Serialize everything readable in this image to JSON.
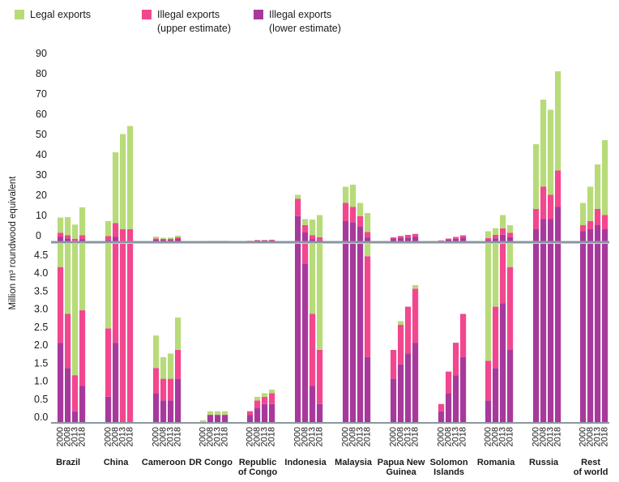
{
  "legend": [
    {
      "label_lines": [
        "Legal exports"
      ],
      "color": "#b8db7a"
    },
    {
      "label_lines": [
        "Illegal exports",
        "(upper estimate)"
      ],
      "color": "#f2478f"
    },
    {
      "label_lines": [
        "Illegal exports",
        "(lower estimate)"
      ],
      "color": "#a8399c"
    }
  ],
  "chart_data": [
    {
      "type": "bar",
      "stacked": true,
      "panel": "upper",
      "ylabel": "Million m³ roundwood equivalent",
      "ylim": [
        0,
        90
      ],
      "yticks": [
        "0",
        "10",
        "20",
        "30",
        "40",
        "50",
        "60",
        "70",
        "80",
        "90"
      ],
      "years": [
        "2000",
        "2008",
        "2013",
        "2018"
      ],
      "groups": [
        {
          "name": "Brazil",
          "values": [
            [
              2.2,
              4.3,
              11.8
            ],
            [
              1.5,
              3.0,
              12.0
            ],
            [
              0.3,
              1.3,
              8.3
            ],
            [
              1.0,
              3.1,
              16.8
            ]
          ]
        },
        {
          "name": "China",
          "values": [
            [
              0.7,
              2.6,
              10.0
            ],
            [
              2.2,
              9.0,
              44.0
            ],
            [
              0,
              6.0,
              53.0
            ],
            [
              0,
              6.0,
              57.0
            ]
          ]
        },
        {
          "name": "Cameroon",
          "values": [
            [
              0.8,
              1.5,
              2.4
            ],
            [
              0.6,
              1.2,
              1.8
            ],
            [
              0.6,
              1.2,
              1.9
            ],
            [
              1.2,
              2.0,
              2.9
            ]
          ]
        },
        {
          "name": "DR Congo",
          "values": [
            [
              0,
              0,
              0.05
            ],
            [
              0.2,
              0.2,
              0.3
            ],
            [
              0.2,
              0.2,
              0.3
            ],
            [
              0.2,
              0.2,
              0.3
            ]
          ]
        },
        {
          "name": "Republic of Congo",
          "values": [
            [
              0.2,
              0.3,
              0.3
            ],
            [
              0.4,
              0.6,
              0.7
            ],
            [
              0.5,
              0.7,
              0.8
            ],
            [
              0.5,
              0.8,
              0.9
            ]
          ]
        },
        {
          "name": "Indonesia",
          "values": [
            [
              12.5,
              21.0,
              23.0
            ],
            [
              4.4,
              8.0,
              11.0
            ],
            [
              1.0,
              3.0,
              10.8
            ],
            [
              0.5,
              2.0,
              13.0
            ]
          ]
        },
        {
          "name": "Malaysia",
          "values": [
            [
              10.0,
              19.0,
              27.0
            ],
            [
              9.5,
              17.0,
              28.0
            ],
            [
              7.5,
              12.5,
              19.0
            ],
            [
              1.8,
              4.6,
              14.0
            ]
          ]
        },
        {
          "name": "Papua New Guinea",
          "values": [
            [
              1.2,
              2.0,
              2.0
            ],
            [
              1.6,
              2.7,
              2.8
            ],
            [
              1.9,
              3.2,
              3.2
            ],
            [
              2.2,
              3.7,
              3.8
            ]
          ]
        },
        {
          "name": "Solomon Islands",
          "values": [
            [
              0.3,
              0.5,
              0.5
            ],
            [
              0.8,
              1.4,
              1.4
            ],
            [
              1.3,
              2.2,
              2.2
            ],
            [
              1.8,
              3.0,
              3.0
            ]
          ]
        },
        {
          "name": "Romania",
          "values": [
            [
              0.6,
              1.7,
              5.0
            ],
            [
              1.5,
              3.2,
              6.5
            ],
            [
              3.3,
              6.5,
              13.0
            ],
            [
              2.0,
              4.3,
              8.0
            ]
          ]
        },
        {
          "name": "Russia",
          "values": [
            [
              6.0,
              16.0,
              48.0
            ],
            [
              11.0,
              27.0,
              70.0
            ],
            [
              11.0,
              23.0,
              65.0
            ],
            [
              17.0,
              35.0,
              84.0
            ]
          ]
        },
        {
          "name": "Rest of world",
          "values": [
            [
              5.0,
              8.0,
              19.0
            ],
            [
              6.0,
              10.0,
              27.0
            ],
            [
              8.0,
              16.0,
              38.0
            ],
            [
              6.0,
              13.0,
              50.0
            ]
          ]
        }
      ],
      "note": "Per bar: [Illegal exports (lower estimate), Illegal exports (upper estimate), Legal exports] cumulative stack tops"
    },
    {
      "type": "bar",
      "stacked": true,
      "panel": "lower",
      "ylabel": "Million m³ roundwood equivalent",
      "ylim": [
        0,
        5
      ],
      "yticks": [
        "0.0",
        "0.5",
        "1.0",
        "1.5",
        "2.0",
        "2.5",
        "3.0",
        "3.5",
        "4.0",
        "4.5"
      ],
      "note": "Same series as upper panel, shown on an expanded scale (bars exceeding 5 are clipped)"
    }
  ],
  "group_labels": [
    [
      "Brazil"
    ],
    [
      "China"
    ],
    [
      "Cameroon"
    ],
    [
      "DR Congo"
    ],
    [
      "Republic",
      "of Congo"
    ],
    [
      "Indonesia"
    ],
    [
      "Malaysia"
    ],
    [
      "Papua New",
      "Guinea"
    ],
    [
      "Solomon",
      "Islands"
    ],
    [
      "Romania"
    ],
    [
      "Russia"
    ],
    [
      "Rest",
      "of world"
    ]
  ]
}
